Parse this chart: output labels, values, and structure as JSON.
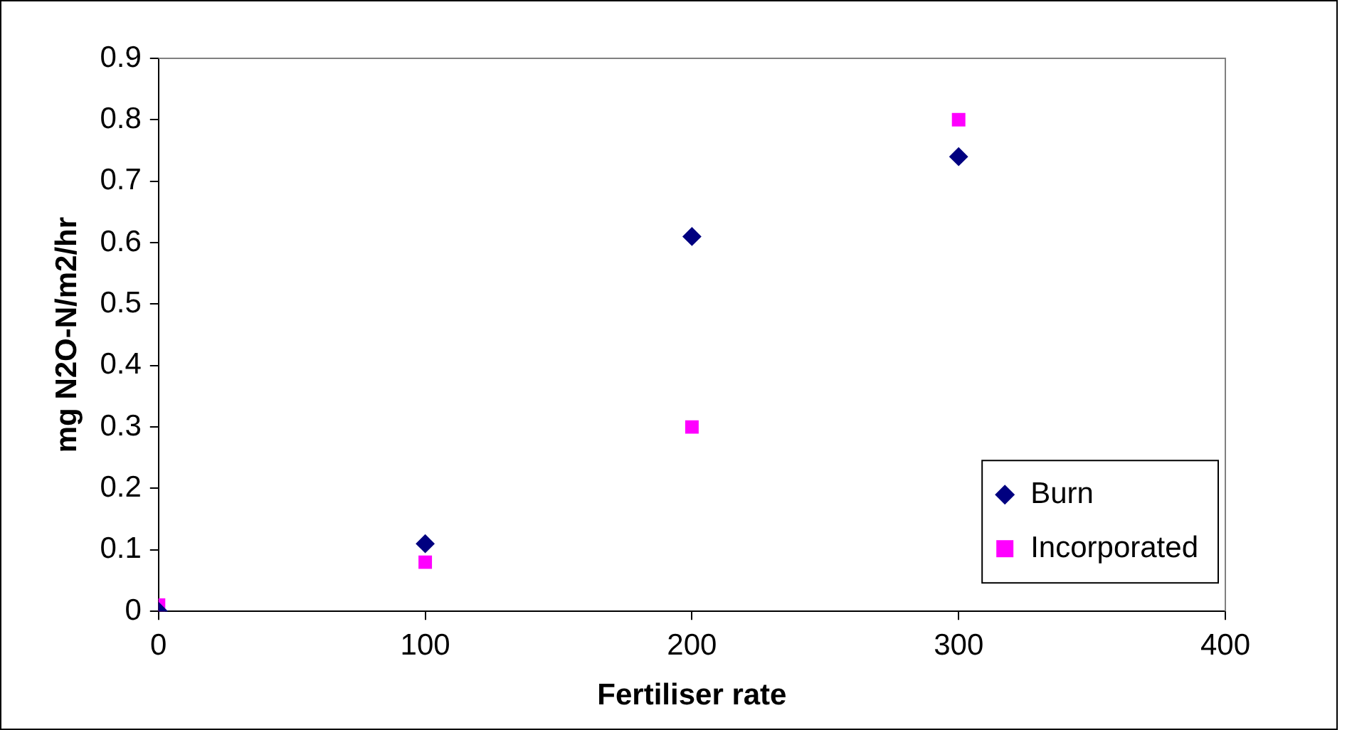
{
  "chart_data": {
    "type": "scatter",
    "xlabel": "Fertiliser rate",
    "ylabel": "mg N2O-N/m2/hr",
    "x": [
      0,
      100,
      200,
      300
    ],
    "series": [
      {
        "name": "Burn",
        "color": "#000080",
        "marker": "diamond",
        "values": [
          0,
          0.11,
          0.61,
          0.74
        ]
      },
      {
        "name": "Incorporated",
        "color": "#ff00ff",
        "marker": "square",
        "values": [
          0.01,
          0.08,
          0.3,
          0.8
        ]
      }
    ],
    "xlim": [
      0,
      400
    ],
    "xticks": [
      0,
      100,
      200,
      300,
      400
    ],
    "ylim": [
      0,
      0.9
    ],
    "yticks": [
      0,
      0.1,
      0.2,
      0.3,
      0.4,
      0.5,
      0.6,
      0.7,
      0.8,
      0.9
    ],
    "grid": false,
    "legend": "bottom right"
  }
}
